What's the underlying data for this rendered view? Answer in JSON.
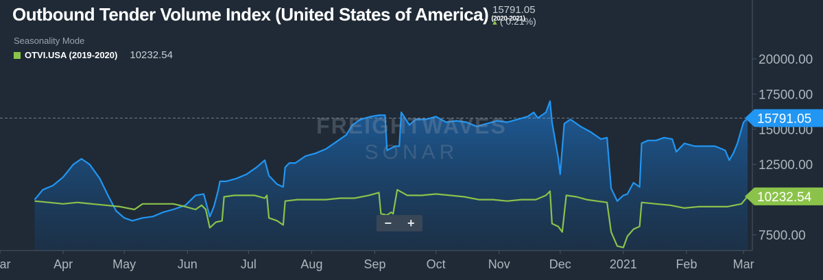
{
  "header": {
    "title": "Outbound Tender Volume Index (United States of America)",
    "range": "(2020-2021)",
    "current_value": "15791.05",
    "change": "( 0.21%)",
    "change_direction": "up"
  },
  "seasonality_label": "Seasonality Mode",
  "legend": {
    "name": "OTVI.USA (2019-2020)",
    "value": "10232.54",
    "color": "#8bc34a"
  },
  "watermark": {
    "line1": "FREIGHTWAVES",
    "line2": "SONAR"
  },
  "zoom": {
    "minus": "−",
    "plus": "+"
  },
  "colors": {
    "background": "#1f2a36",
    "current_series": "#2196f3",
    "prior_series": "#8bc34a",
    "axis_text": "#aeb6be"
  },
  "chart_data": {
    "type": "area",
    "x_labels": [
      "Mar",
      "Apr",
      "May",
      "Jun",
      "Jul",
      "Aug",
      "Sep",
      "Oct",
      "Nov",
      "Dec",
      "2021",
      "Feb",
      "Mar"
    ],
    "y_ticks": [
      "7500.00",
      "10000.00",
      "12500.00",
      "15000.00",
      "17500.00",
      "20000.00"
    ],
    "ylim": [
      6000,
      20500
    ],
    "reference_line": 15791.05,
    "grid": false,
    "series": [
      {
        "name": "OTVI.USA (2020-2021)",
        "color": "#2196f3",
        "label": "15791.05",
        "points": [
          [
            "2020-03-18",
            10000
          ],
          [
            "2020-03-22",
            10700
          ],
          [
            "2020-03-27",
            11000
          ],
          [
            "2020-04-01",
            11600
          ],
          [
            "2020-04-06",
            12500
          ],
          [
            "2020-04-10",
            12900
          ],
          [
            "2020-04-14",
            12500
          ],
          [
            "2020-04-19",
            11500
          ],
          [
            "2020-04-23",
            10300
          ],
          [
            "2020-04-27",
            9200
          ],
          [
            "2020-05-01",
            8700
          ],
          [
            "2020-05-05",
            8500
          ],
          [
            "2020-05-10",
            8700
          ],
          [
            "2020-05-15",
            8800
          ],
          [
            "2020-05-20",
            9100
          ],
          [
            "2020-05-25",
            9300
          ],
          [
            "2020-05-31",
            9600
          ],
          [
            "2020-06-05",
            10300
          ],
          [
            "2020-06-09",
            10400
          ],
          [
            "2020-06-12",
            8800
          ],
          [
            "2020-06-14",
            9500
          ],
          [
            "2020-06-16",
            10600
          ],
          [
            "2020-06-17",
            11300
          ],
          [
            "2020-06-20",
            11300
          ],
          [
            "2020-06-25",
            11500
          ],
          [
            "2020-06-30",
            11800
          ],
          [
            "2020-07-05",
            12300
          ],
          [
            "2020-07-09",
            12800
          ],
          [
            "2020-07-11",
            11700
          ],
          [
            "2020-07-15",
            11100
          ],
          [
            "2020-07-18",
            10900
          ],
          [
            "2020-07-19",
            12300
          ],
          [
            "2020-07-21",
            12600
          ],
          [
            "2020-07-24",
            12600
          ],
          [
            "2020-07-29",
            13100
          ],
          [
            "2020-08-03",
            13300
          ],
          [
            "2020-08-08",
            13600
          ],
          [
            "2020-08-13",
            14100
          ],
          [
            "2020-08-18",
            14600
          ],
          [
            "2020-08-21",
            15300
          ],
          [
            "2020-08-25",
            15700
          ],
          [
            "2020-08-30",
            15900
          ],
          [
            "2020-09-03",
            16000
          ],
          [
            "2020-09-06",
            16000
          ],
          [
            "2020-09-07",
            13500
          ],
          [
            "2020-09-11",
            13800
          ],
          [
            "2020-09-13",
            13800
          ],
          [
            "2020-09-14",
            16200
          ],
          [
            "2020-09-18",
            15300
          ],
          [
            "2020-09-21",
            15700
          ],
          [
            "2020-09-26",
            15700
          ],
          [
            "2020-10-01",
            15900
          ],
          [
            "2020-10-06",
            15500
          ],
          [
            "2020-10-11",
            15600
          ],
          [
            "2020-10-16",
            15500
          ],
          [
            "2020-10-21",
            15200
          ],
          [
            "2020-10-26",
            15400
          ],
          [
            "2020-10-31",
            15600
          ],
          [
            "2020-11-05",
            15500
          ],
          [
            "2020-11-10",
            15700
          ],
          [
            "2020-11-15",
            15900
          ],
          [
            "2020-11-18",
            16200
          ],
          [
            "2020-11-20",
            15800
          ],
          [
            "2020-11-24",
            16200
          ],
          [
            "2020-11-26",
            17000
          ],
          [
            "2020-11-27",
            15500
          ],
          [
            "2020-11-30",
            13000
          ],
          [
            "2020-12-01",
            11800
          ],
          [
            "2020-12-03",
            15400
          ],
          [
            "2020-12-06",
            15700
          ],
          [
            "2020-12-11",
            15200
          ],
          [
            "2020-12-16",
            14800
          ],
          [
            "2020-12-21",
            14300
          ],
          [
            "2020-12-24",
            14400
          ],
          [
            "2020-12-26",
            10800
          ],
          [
            "2020-12-29",
            9900
          ],
          [
            "2021-01-01",
            10300
          ],
          [
            "2021-01-03",
            10400
          ],
          [
            "2021-01-06",
            11200
          ],
          [
            "2021-01-09",
            10900
          ],
          [
            "2021-01-10",
            14000
          ],
          [
            "2021-01-13",
            14200
          ],
          [
            "2021-01-17",
            14200
          ],
          [
            "2021-01-21",
            14400
          ],
          [
            "2021-01-25",
            14300
          ],
          [
            "2021-01-27",
            13400
          ],
          [
            "2021-01-31",
            14000
          ],
          [
            "2021-02-05",
            13800
          ],
          [
            "2021-02-10",
            13800
          ],
          [
            "2021-02-15",
            13800
          ],
          [
            "2021-02-20",
            13500
          ],
          [
            "2021-02-22",
            12800
          ],
          [
            "2021-02-24",
            13300
          ],
          [
            "2021-02-26",
            14000
          ],
          [
            "2021-03-01",
            15500
          ],
          [
            "2021-03-03",
            15791.05
          ]
        ]
      },
      {
        "name": "OTVI.USA (2019-2020)",
        "color": "#8bc34a",
        "label": "10232.54",
        "points": [
          [
            "2020-03-18",
            9900
          ],
          [
            "2020-03-25",
            9800
          ],
          [
            "2020-04-01",
            9700
          ],
          [
            "2020-04-08",
            9800
          ],
          [
            "2020-04-15",
            9700
          ],
          [
            "2020-04-22",
            9600
          ],
          [
            "2020-04-29",
            9500
          ],
          [
            "2020-05-06",
            9300
          ],
          [
            "2020-05-10",
            9700
          ],
          [
            "2020-05-15",
            9700
          ],
          [
            "2020-05-20",
            9700
          ],
          [
            "2020-05-25",
            9700
          ],
          [
            "2020-05-31",
            9500
          ],
          [
            "2020-06-05",
            9300
          ],
          [
            "2020-06-08",
            9600
          ],
          [
            "2020-06-10",
            9300
          ],
          [
            "2020-06-12",
            8000
          ],
          [
            "2020-06-15",
            8400
          ],
          [
            "2020-06-18",
            8500
          ],
          [
            "2020-06-19",
            10200
          ],
          [
            "2020-06-24",
            10300
          ],
          [
            "2020-06-29",
            10300
          ],
          [
            "2020-07-04",
            10300
          ],
          [
            "2020-07-09",
            10100
          ],
          [
            "2020-07-10",
            10300
          ],
          [
            "2020-07-11",
            8700
          ],
          [
            "2020-07-15",
            8500
          ],
          [
            "2020-07-18",
            8200
          ],
          [
            "2020-07-19",
            9900
          ],
          [
            "2020-07-25",
            10000
          ],
          [
            "2020-08-01",
            10000
          ],
          [
            "2020-08-08",
            10000
          ],
          [
            "2020-08-15",
            10100
          ],
          [
            "2020-08-22",
            10100
          ],
          [
            "2020-08-29",
            10300
          ],
          [
            "2020-09-03",
            10500
          ],
          [
            "2020-09-04",
            9000
          ],
          [
            "2020-09-07",
            8900
          ],
          [
            "2020-09-09",
            9100
          ],
          [
            "2020-09-10",
            9000
          ],
          [
            "2020-09-12",
            10700
          ],
          [
            "2020-09-17",
            10300
          ],
          [
            "2020-09-24",
            10300
          ],
          [
            "2020-10-01",
            10400
          ],
          [
            "2020-10-08",
            10300
          ],
          [
            "2020-10-15",
            10200
          ],
          [
            "2020-10-22",
            10000
          ],
          [
            "2020-10-29",
            10000
          ],
          [
            "2020-11-05",
            9900
          ],
          [
            "2020-11-12",
            10000
          ],
          [
            "2020-11-19",
            10000
          ],
          [
            "2020-11-24",
            10300
          ],
          [
            "2020-11-26",
            10600
          ],
          [
            "2020-11-27",
            8300
          ],
          [
            "2020-11-30",
            8100
          ],
          [
            "2020-12-02",
            7700
          ],
          [
            "2020-12-04",
            10300
          ],
          [
            "2020-12-09",
            10200
          ],
          [
            "2020-12-14",
            10000
          ],
          [
            "2020-12-19",
            9900
          ],
          [
            "2020-12-24",
            9800
          ],
          [
            "2020-12-26",
            7700
          ],
          [
            "2020-12-29",
            6700
          ],
          [
            "2021-01-01",
            6600
          ],
          [
            "2021-01-03",
            7400
          ],
          [
            "2021-01-06",
            7900
          ],
          [
            "2021-01-09",
            8100
          ],
          [
            "2021-01-10",
            9800
          ],
          [
            "2021-01-17",
            9700
          ],
          [
            "2021-01-24",
            9600
          ],
          [
            "2021-01-31",
            9400
          ],
          [
            "2021-02-07",
            9500
          ],
          [
            "2021-02-14",
            9500
          ],
          [
            "2021-02-21",
            9500
          ],
          [
            "2021-02-28",
            9700
          ],
          [
            "2021-03-03",
            10232.54
          ]
        ]
      }
    ]
  }
}
